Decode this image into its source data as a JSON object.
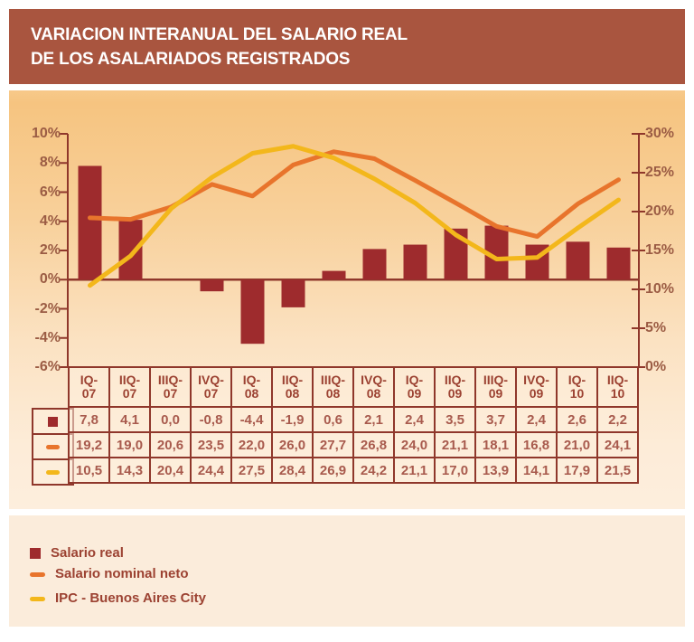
{
  "title": {
    "line1": "VARIACION INTERANUAL DEL SALARIO REAL",
    "line2": "DE LOS ASALARIADOS REGISTRADOS"
  },
  "chart_data": {
    "type": "bar+line",
    "categories": [
      "IQ-07",
      "IIQ-07",
      "IIIQ-07",
      "IVQ-07",
      "IQ-08",
      "IIQ-08",
      "IIIQ-08",
      "IVQ-08",
      "IQ-09",
      "IIQ-09",
      "IIIQ-09",
      "IVQ-09",
      "IQ-10",
      "IIQ-10"
    ],
    "series": [
      {
        "name": "Salario real",
        "type": "bar",
        "axis": "left",
        "color": "#9e2b2d",
        "values": [
          7.8,
          4.1,
          0.0,
          -0.8,
          -4.4,
          -1.9,
          0.6,
          2.1,
          2.4,
          3.5,
          3.7,
          2.4,
          2.6,
          2.2
        ]
      },
      {
        "name": "Salario nominal neto",
        "type": "line",
        "axis": "right",
        "color": "#e8742c",
        "values": [
          19.2,
          19.0,
          20.6,
          23.5,
          22.0,
          26.0,
          27.7,
          26.8,
          24.0,
          21.1,
          18.1,
          16.8,
          21.0,
          24.1
        ]
      },
      {
        "name": "IPC - Buenos Aires City",
        "type": "line",
        "axis": "right",
        "color": "#f3b71b",
        "values": [
          10.5,
          14.3,
          20.4,
          24.4,
          27.5,
          28.4,
          26.9,
          24.2,
          21.1,
          17.0,
          13.9,
          14.1,
          17.9,
          21.5
        ]
      }
    ],
    "left_axis": {
      "min": -6,
      "max": 10,
      "step": 2,
      "tick_labels": [
        "10%",
        "8%",
        "6%",
        "4%",
        "2%",
        "0%",
        "-2%",
        "-4%",
        "-6%"
      ]
    },
    "right_axis": {
      "min": 0,
      "max": 30,
      "step": 5,
      "tick_labels": [
        "30%",
        "25%",
        "20%",
        "15%",
        "10%",
        "5%",
        "0%"
      ]
    },
    "grid": false,
    "legend_position": "bottom",
    "value_table": {
      "shown": true,
      "decimal_separator": ","
    }
  },
  "colors": {
    "title_bg": "#a9553f",
    "title_text": "#ffffff",
    "panel_bg_top": "#f6c480",
    "panel_bg_bottom": "#fdeedd",
    "legend_bg": "#fbecdb",
    "axis_text": "#9b5c44",
    "table_border": "#8f372b",
    "table_header_text": "#9c4232",
    "table_value_text": "#a85a4d",
    "legend_text": "#9c4232",
    "bar_color": "#9e2b2d",
    "line_nominal_color": "#e8742c",
    "line_ipc_color": "#f3b71b"
  }
}
